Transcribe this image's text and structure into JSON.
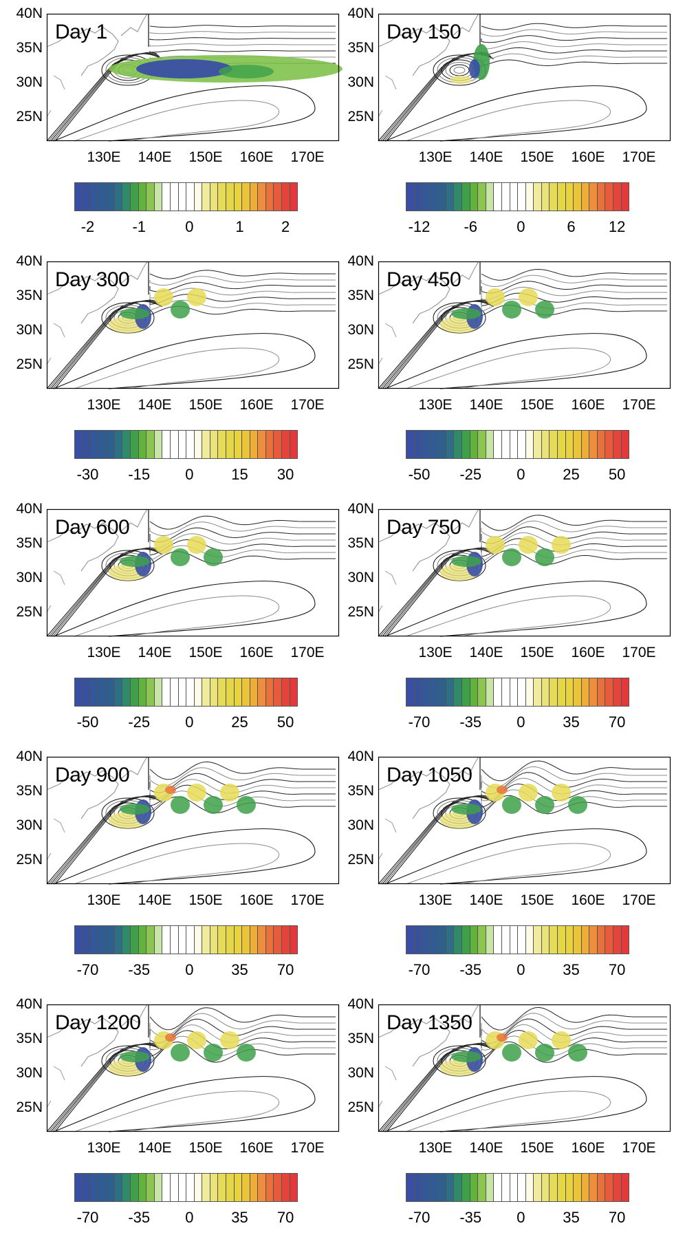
{
  "lat_labels": [
    "40N",
    "35N",
    "30N",
    "25N"
  ],
  "lon_labels": [
    "130E",
    "140E",
    "150E",
    "160E",
    "170E"
  ],
  "colorbar_colors": [
    "#3a4fa3",
    "#36529f",
    "#33589a",
    "#305c95",
    "#2d608f",
    "#2d6f86",
    "#2f8a6a",
    "#3ea14a",
    "#62b33d",
    "#8cc650",
    "#c7e5a5",
    "#ffffff",
    "#ffffff",
    "#ffffff",
    "#ffffff",
    "#fdfbe6",
    "#f0ec9c",
    "#eae27a",
    "#e5db57",
    "#e3d747",
    "#e8d23e",
    "#ecc43a",
    "#eeac39",
    "#ec8e3b",
    "#e9703a",
    "#e75a3a",
    "#e4443a",
    "#e3393a"
  ],
  "panels": [
    {
      "day": "Day 1",
      "ticks": [
        "-2",
        "-1",
        "0",
        "1",
        "2"
      ]
    },
    {
      "day": "Day 150",
      "ticks": [
        "-12",
        "-6",
        "0",
        "6",
        "12"
      ]
    },
    {
      "day": "Day 300",
      "ticks": [
        "-30",
        "-15",
        "0",
        "15",
        "30"
      ]
    },
    {
      "day": "Day 450",
      "ticks": [
        "-50",
        "-25",
        "0",
        "25",
        "50"
      ]
    },
    {
      "day": "Day 600",
      "ticks": [
        "-50",
        "-25",
        "0",
        "25",
        "50"
      ]
    },
    {
      "day": "Day 750",
      "ticks": [
        "-70",
        "-35",
        "0",
        "35",
        "70"
      ]
    },
    {
      "day": "Day 900",
      "ticks": [
        "-70",
        "-35",
        "0",
        "35",
        "70"
      ]
    },
    {
      "day": "Day 1050",
      "ticks": [
        "-70",
        "-35",
        "0",
        "35",
        "70"
      ]
    },
    {
      "day": "Day 1200",
      "ticks": [
        "-70",
        "-35",
        "0",
        "35",
        "70"
      ]
    },
    {
      "day": "Day 1350",
      "ticks": [
        "-70",
        "-35",
        "0",
        "35",
        "70"
      ]
    }
  ]
}
